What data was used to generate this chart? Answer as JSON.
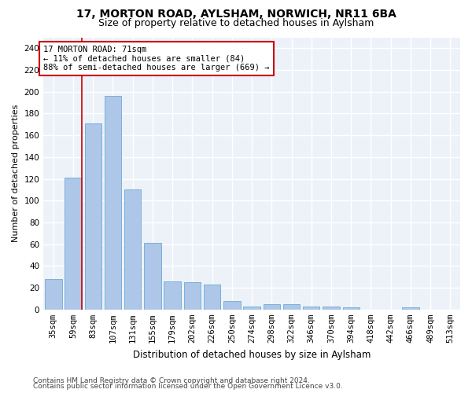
{
  "title1": "17, MORTON ROAD, AYLSHAM, NORWICH, NR11 6BA",
  "title2": "Size of property relative to detached houses in Aylsham",
  "xlabel": "Distribution of detached houses by size in Aylsham",
  "ylabel": "Number of detached properties",
  "categories": [
    "35sqm",
    "59sqm",
    "83sqm",
    "107sqm",
    "131sqm",
    "155sqm",
    "179sqm",
    "202sqm",
    "226sqm",
    "250sqm",
    "274sqm",
    "298sqm",
    "322sqm",
    "346sqm",
    "370sqm",
    "394sqm",
    "418sqm",
    "442sqm",
    "466sqm",
    "489sqm",
    "513sqm"
  ],
  "values": [
    28,
    121,
    171,
    196,
    110,
    61,
    26,
    25,
    23,
    8,
    3,
    5,
    5,
    3,
    3,
    2,
    0,
    0,
    2,
    0,
    0
  ],
  "bar_color": "#aec6e8",
  "bar_edge_color": "#6aaad4",
  "vline_color": "#cc0000",
  "vline_x_index": 1,
  "annotation_text": "17 MORTON ROAD: 71sqm\n← 11% of detached houses are smaller (84)\n88% of semi-detached houses are larger (669) →",
  "annotation_box_color": "#ffffff",
  "annotation_box_edge_color": "#cc0000",
  "ylim": [
    0,
    250
  ],
  "yticks": [
    0,
    20,
    40,
    60,
    80,
    100,
    120,
    140,
    160,
    180,
    200,
    220,
    240
  ],
  "footer1": "Contains HM Land Registry data © Crown copyright and database right 2024.",
  "footer2": "Contains public sector information licensed under the Open Government Licence v3.0.",
  "background_color": "#edf2f9",
  "grid_color": "#ffffff",
  "title1_fontsize": 10,
  "title2_fontsize": 9,
  "xlabel_fontsize": 8.5,
  "ylabel_fontsize": 8,
  "tick_fontsize": 7.5,
  "annot_fontsize": 7.5,
  "footer_fontsize": 6.5
}
